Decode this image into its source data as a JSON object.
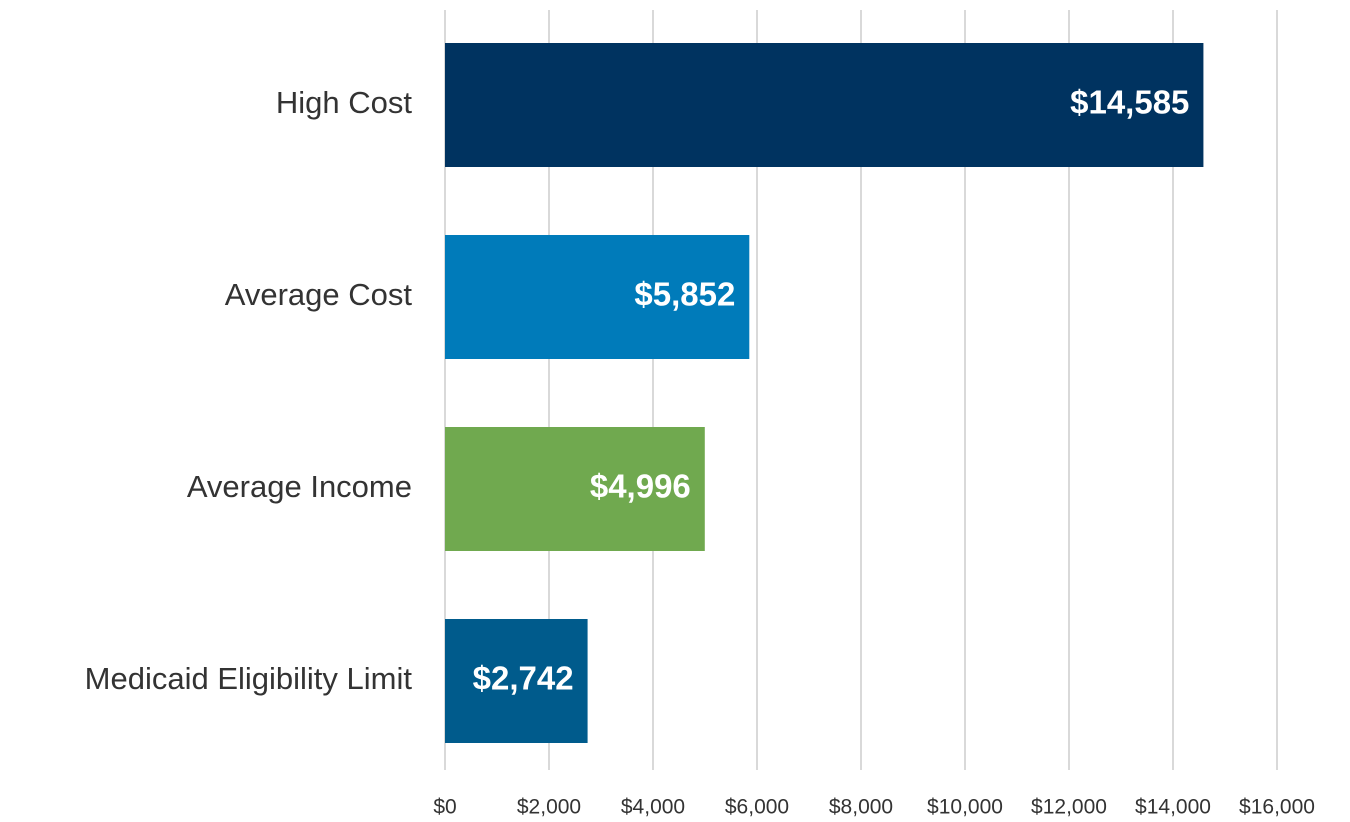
{
  "chart_data": {
    "type": "bar",
    "orientation": "horizontal",
    "categories": [
      "High Cost",
      "Average Cost",
      "Average Income",
      "Medicaid Eligibility Limit"
    ],
    "values": [
      14585,
      5852,
      4996,
      2742
    ],
    "value_labels": [
      "$14,585",
      "$5,852",
      "$4,996",
      "$2,742"
    ],
    "colors": [
      "#003360",
      "#007bba",
      "#70a94f",
      "#005b8c"
    ],
    "xlim": [
      0,
      16000
    ],
    "xticks": [
      {
        "value": 0,
        "label": "$0"
      },
      {
        "value": 2000,
        "label": "$2,000"
      },
      {
        "value": 4000,
        "label": "$4,000"
      },
      {
        "value": 6000,
        "label": "$6,000"
      },
      {
        "value": 8000,
        "label": "$8,000"
      },
      {
        "value": 10000,
        "label": "$10,000"
      },
      {
        "value": 12000,
        "label": "$12,000"
      },
      {
        "value": 14000,
        "label": "$14,000"
      },
      {
        "value": 16000,
        "label": "$16,000"
      }
    ],
    "grid": true
  }
}
